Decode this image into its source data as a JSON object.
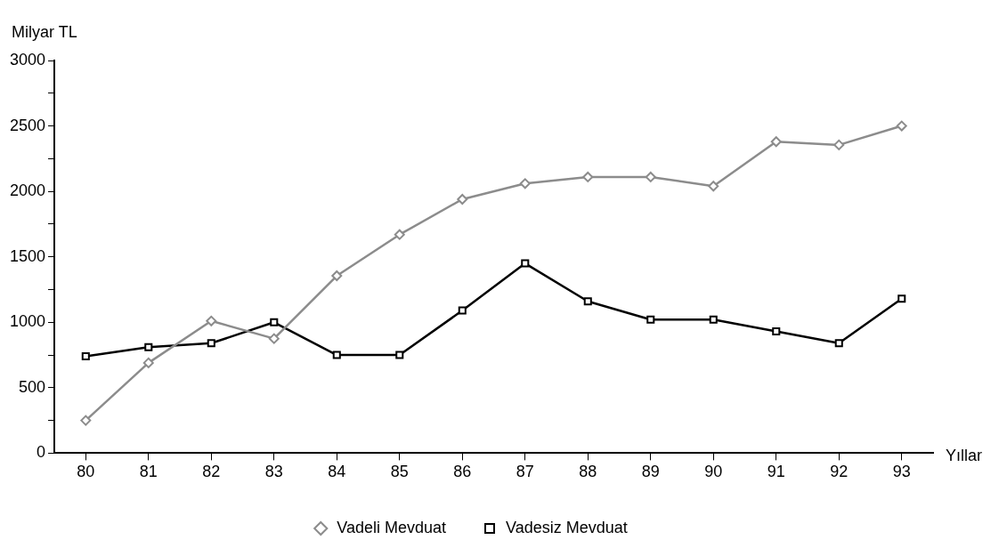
{
  "chart_data": {
    "type": "line",
    "ylabel": "Milyar TL",
    "xlabel": "Yıllar",
    "categories": [
      "80",
      "81",
      "82",
      "83",
      "84",
      "85",
      "86",
      "87",
      "88",
      "89",
      "90",
      "91",
      "92",
      "93"
    ],
    "series": [
      {
        "name": "Vadeli Mevduat",
        "color": "#8c8c8c",
        "marker": "diamond",
        "values": [
          250,
          690,
          1010,
          875,
          1355,
          1670,
          1940,
          2060,
          2110,
          2110,
          2040,
          2380,
          2355,
          2500
        ]
      },
      {
        "name": "Vadesiz Mevduat",
        "color": "#000000",
        "marker": "square",
        "values": [
          740,
          810,
          840,
          1000,
          750,
          750,
          1090,
          1450,
          1160,
          1020,
          1020,
          930,
          840,
          1180
        ]
      }
    ],
    "ylim": [
      0,
      3000
    ],
    "yticks": [
      0,
      {
        "value": 250,
        "label": null
      },
      500,
      {
        "value": 750,
        "label": null
      },
      1000,
      {
        "value": 1250,
        "label": null
      },
      1500,
      {
        "value": 1750,
        "label": null
      },
      2000,
      {
        "value": 2250,
        "label": null
      },
      2500,
      {
        "value": 2750,
        "label": null
      },
      3000
    ],
    "grid": false,
    "legend": "bottom"
  }
}
